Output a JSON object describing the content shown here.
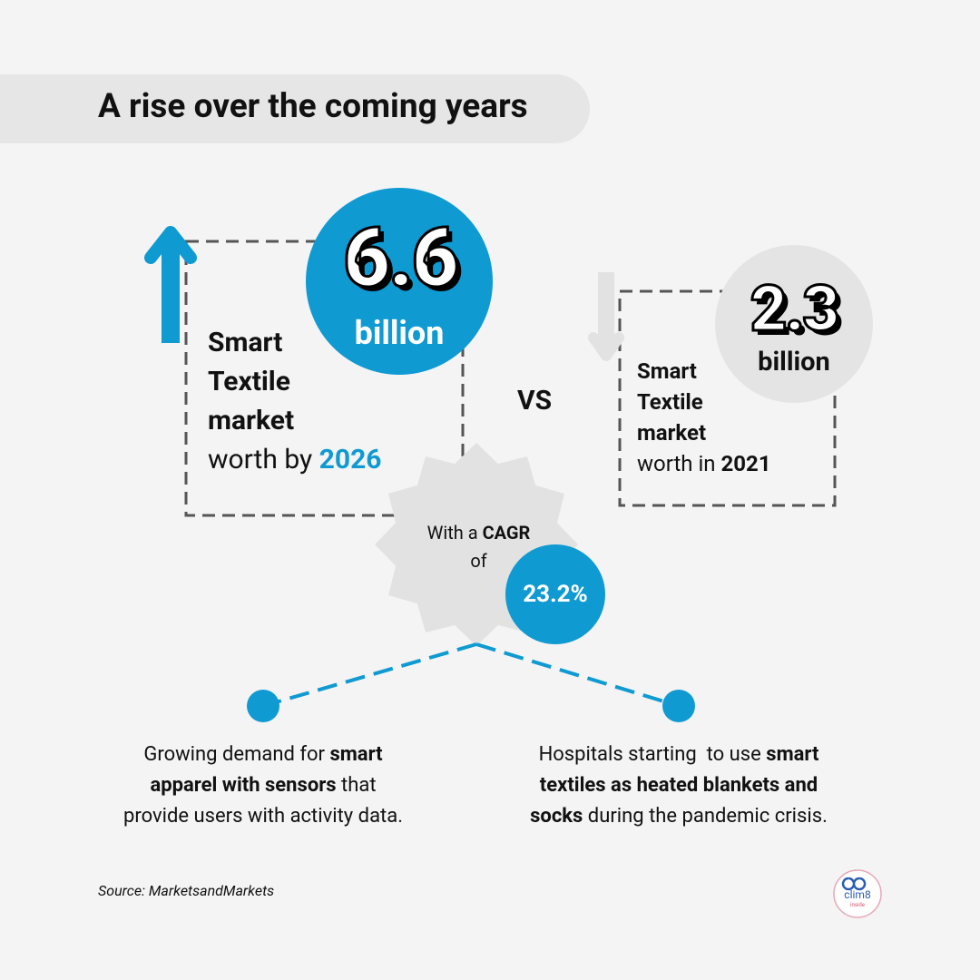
{
  "header": {
    "title": "A rise over the coming years"
  },
  "left": {
    "value": "6.6",
    "unit": "billion",
    "label": "Smart Textile market",
    "prefix": "worth by ",
    "year": "2026"
  },
  "vs": "VS",
  "right": {
    "value": "2.3",
    "unit": "billion",
    "label": "Smart Textile market",
    "prefix": "worth in ",
    "year": "2021"
  },
  "cagr": {
    "prefix": "With a ",
    "label": "CAGR",
    "suffix": "of",
    "value": "23.2%"
  },
  "points": [
    {
      "before": "Growing demand for ",
      "bold": "smart apparel with sensors",
      "after": " that provide users with activity data."
    },
    {
      "before": "Hospitals starting  to use ",
      "bold": "smart textiles as heated blankets and socks",
      "after": " during the pandemic crisis."
    }
  ],
  "source": "Source: MarketsandMarkets",
  "logo": {
    "name": "clim8",
    "tag": "inside"
  }
}
